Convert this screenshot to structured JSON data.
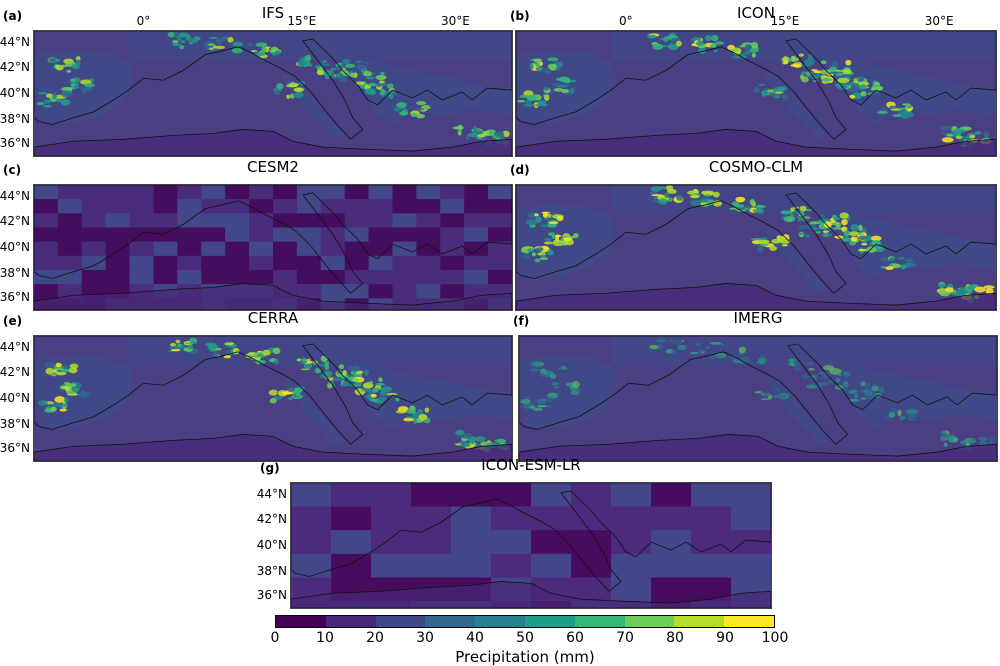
{
  "panels": [
    {
      "label": "(a)",
      "title": "IFS",
      "style": "fine",
      "intensity": 1.0
    },
    {
      "label": "(b)",
      "title": "ICON",
      "style": "fine",
      "intensity": 1.1
    },
    {
      "label": "(c)",
      "title": "CESM2",
      "style": "coarse",
      "intensity": 0.3
    },
    {
      "label": "(d)",
      "title": "COSMO-CLM",
      "style": "fine",
      "intensity": 1.2
    },
    {
      "label": "(e)",
      "title": "CERRA",
      "style": "fine",
      "intensity": 1.05
    },
    {
      "label": "(f)",
      "title": "IMERG",
      "style": "smooth",
      "intensity": 0.7
    },
    {
      "label": "(g)",
      "title": "ICON-ESM-LR",
      "style": "very-coarse",
      "intensity": 0.25
    }
  ],
  "lat_ticks": [
    "44°N",
    "42°N",
    "40°N",
    "38°N",
    "36°N"
  ],
  "lon_ticks": [
    "0°",
    "15°E",
    "30°E"
  ],
  "colorbar": {
    "label": "Precipitation (mm)",
    "ticks": [
      "0",
      "10",
      "20",
      "30",
      "40",
      "50",
      "60",
      "70",
      "80",
      "90",
      "100"
    ],
    "colors": [
      "#440154",
      "#482878",
      "#3e4a89",
      "#31688e",
      "#26828e",
      "#1f9e89",
      "#35b779",
      "#6ece58",
      "#b5de2b",
      "#fde725"
    ]
  }
}
